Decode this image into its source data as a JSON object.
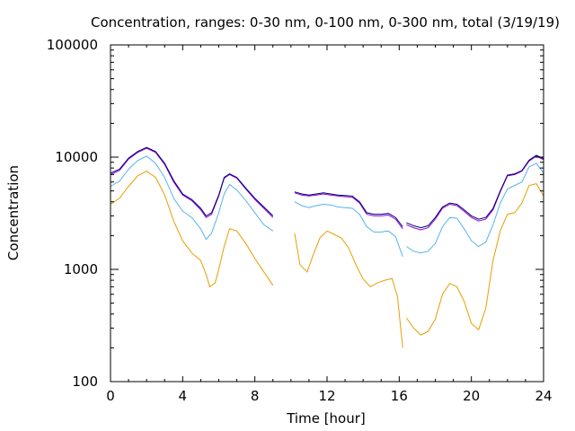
{
  "chart_data": {
    "type": "line",
    "title": "Concentration, ranges: 0-30 nm, 0-100 nm, 0-300 nm, total (3/19/19)",
    "xlabel": "Time [hour]",
    "ylabel": "Concentration",
    "xlim": [
      0,
      24
    ],
    "ylim": [
      100,
      100000
    ],
    "yscale": "log",
    "grid": false,
    "legend": "none",
    "x_ticks": [
      "0",
      "4",
      "8",
      "12",
      "16",
      "20",
      "24"
    ],
    "y_ticks": [
      "100",
      "1000",
      "10000",
      "100000"
    ],
    "series": [
      {
        "color": "#e69f00",
        "segments": [
          {
            "x": [
              0,
              0.5,
              1.0,
              1.5,
              2.0,
              2.5,
              3.0,
              3.5,
              4.0,
              4.5,
              5.0,
              5.3,
              5.5,
              5.8,
              6.0,
              6.3,
              6.6,
              7.0,
              7.5,
              8.0,
              8.5,
              9.0
            ],
            "y": [
              3800,
              4300,
              5500,
              6800,
              7500,
              6600,
              4600,
              2700,
              1800,
              1400,
              1200,
              900,
              700,
              760,
              1000,
              1600,
              2300,
              2200,
              1700,
              1250,
              950,
              720
            ]
          },
          {
            "x": [
              10.2,
              10.5,
              10.9,
              11.2,
              11.6,
              12.0,
              12.4,
              12.8,
              13.2,
              13.6,
              14.0,
              14.4,
              14.8,
              15.2,
              15.6,
              15.9,
              16.2
            ],
            "y": [
              2100,
              1100,
              950,
              1300,
              1900,
              2200,
              2050,
              1900,
              1550,
              1100,
              820,
              700,
              760,
              800,
              830,
              580,
              200
            ]
          },
          {
            "x": [
              16.4,
              16.8,
              17.2,
              17.6,
              18.0,
              18.4,
              18.8,
              19.2,
              19.6,
              20.0,
              20.4,
              20.8,
              21.2,
              21.6,
              22.0,
              22.4,
              22.8,
              23.2,
              23.6,
              24.0
            ],
            "y": [
              370,
              300,
              260,
              280,
              360,
              600,
              750,
              700,
              520,
              330,
              290,
              450,
              1200,
              2200,
              3100,
              3200,
              3900,
              5600,
              5800,
              4500
            ]
          }
        ]
      },
      {
        "color": "#56b4e9",
        "segments": [
          {
            "x": [
              0,
              0.5,
              1.0,
              1.5,
              2.0,
              2.5,
              3.0,
              3.5,
              4.0,
              4.5,
              5.0,
              5.3,
              5.6,
              6.0,
              6.3,
              6.6,
              7.0,
              7.5,
              8.0,
              8.5,
              9.0
            ],
            "y": [
              5500,
              6100,
              7800,
              9300,
              10200,
              8800,
              6600,
              4300,
              3300,
              2900,
              2300,
              1850,
              2100,
              3200,
              4700,
              5700,
              5100,
              4100,
              3200,
              2500,
              2200
            ]
          },
          {
            "x": [
              10.2,
              10.6,
              11.0,
              11.4,
              11.8,
              12.2,
              12.6,
              13.0,
              13.4,
              13.8,
              14.2,
              14.6,
              15.0,
              15.4,
              15.8,
              16.2
            ],
            "y": [
              4000,
              3700,
              3550,
              3700,
              3800,
              3750,
              3600,
              3550,
              3500,
              3100,
              2400,
              2150,
              2150,
              2200,
              1950,
              1300
            ]
          },
          {
            "x": [
              16.4,
              16.8,
              17.2,
              17.6,
              18.0,
              18.4,
              18.8,
              19.2,
              19.6,
              20.0,
              20.4,
              20.8,
              21.2,
              21.6,
              22.0,
              22.4,
              22.8,
              23.2,
              23.6,
              24.0
            ],
            "y": [
              1600,
              1450,
              1400,
              1450,
              1700,
              2400,
              2900,
              2850,
              2300,
              1800,
              1600,
              1750,
              2500,
              3900,
              5200,
              5600,
              6000,
              8200,
              8800,
              7200
            ]
          }
        ]
      },
      {
        "color": "#9400d3",
        "segments": [
          {
            "x": [
              0,
              0.5,
              1.0,
              1.5,
              2.0,
              2.5,
              3.0,
              3.5,
              4.0,
              4.5,
              5.0,
              5.3,
              5.6,
              6.0,
              6.3,
              6.6,
              7.0,
              7.5,
              8.0,
              8.5,
              9.0
            ],
            "y": [
              7000,
              7600,
              9600,
              11000,
              12000,
              11000,
              8600,
              6000,
              4600,
              4100,
              3400,
              2900,
              3100,
              4500,
              6500,
              7000,
              6500,
              5200,
              4200,
              3500,
              2900
            ]
          },
          {
            "x": [
              10.2,
              10.6,
              11.0,
              11.4,
              11.8,
              12.2,
              12.6,
              13.0,
              13.4,
              13.8,
              14.2,
              14.6,
              15.0,
              15.4,
              15.8,
              16.2
            ],
            "y": [
              4800,
              4600,
              4500,
              4600,
              4700,
              4600,
              4500,
              4450,
              4400,
              3900,
              3100,
              3000,
              3000,
              3050,
              2800,
              2300
            ]
          },
          {
            "x": [
              16.4,
              16.8,
              17.2,
              17.6,
              18.0,
              18.4,
              18.8,
              19.2,
              19.6,
              20.0,
              20.4,
              20.8,
              21.2,
              21.6,
              22.0,
              22.4,
              22.8,
              23.2,
              23.6,
              24.0
            ],
            "y": [
              2500,
              2350,
              2250,
              2350,
              2800,
              3500,
              3800,
              3700,
              3300,
              2900,
              2700,
              2800,
              3400,
              4900,
              6800,
              7000,
              7500,
              9200,
              10200,
              9500
            ]
          }
        ]
      },
      {
        "color": "#000080",
        "segments": [
          {
            "x": [
              0,
              0.5,
              1.0,
              1.5,
              2.0,
              2.5,
              3.0,
              3.5,
              4.0,
              4.5,
              5.0,
              5.3,
              5.6,
              6.0,
              6.3,
              6.6,
              7.0,
              7.5,
              8.0,
              8.5,
              9.0
            ],
            "y": [
              7200,
              7800,
              9800,
              11200,
              12200,
              11200,
              8800,
              6200,
              4700,
              4200,
              3500,
              3000,
              3200,
              4600,
              6600,
              7100,
              6600,
              5300,
              4300,
              3600,
              3000
            ]
          },
          {
            "x": [
              10.2,
              10.6,
              11.0,
              11.4,
              11.8,
              12.2,
              12.6,
              13.0,
              13.4,
              13.8,
              14.2,
              14.6,
              15.0,
              15.4,
              15.8,
              16.2
            ],
            "y": [
              4900,
              4700,
              4600,
              4700,
              4800,
              4700,
              4600,
              4550,
              4500,
              4000,
              3200,
              3100,
              3100,
              3150,
              2900,
              2400
            ]
          },
          {
            "x": [
              16.4,
              16.8,
              17.2,
              17.6,
              18.0,
              18.4,
              18.8,
              19.2,
              19.6,
              20.0,
              20.4,
              20.8,
              21.2,
              21.6,
              22.0,
              22.4,
              22.8,
              23.2,
              23.6,
              24.0
            ],
            "y": [
              2600,
              2450,
              2350,
              2450,
              2900,
              3600,
              3900,
              3800,
              3400,
              3000,
              2800,
              2900,
              3500,
              5000,
              6900,
              7100,
              7600,
              9400,
              10400,
              9700
            ]
          }
        ]
      }
    ]
  }
}
